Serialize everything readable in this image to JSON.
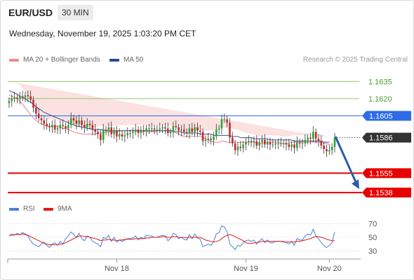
{
  "header": {
    "symbol": "EUR/USD",
    "timeframe": "30 MIN",
    "datetime": "Wednesday, November 19, 2025 1:03:20 PM CET"
  },
  "legend": {
    "main": [
      {
        "label": "MA 20 + Bollinger Bands",
        "color": "#f08c8c"
      },
      {
        "label": "MA 50",
        "color": "#2a4a8a"
      }
    ],
    "rsi": [
      {
        "label": "RSI",
        "color": "#4f7fd6"
      },
      {
        "label": "9MA",
        "color": "#e11a1a"
      }
    ]
  },
  "credit": "Research © 2025 Trading Central",
  "chart_data": {
    "type": "candlestick",
    "price_range": [
      1.1532,
      1.1645
    ],
    "x_ticks": [
      {
        "label": "Nov 18",
        "index": 40
      },
      {
        "label": "Nov 19",
        "index": 88
      },
      {
        "label": "Nov 20",
        "index": 119
      }
    ],
    "levels": [
      {
        "value": 1.1635,
        "label": "1.1635",
        "kind": "target",
        "color": "#8dc96a"
      },
      {
        "value": 1.162,
        "label": "1.1620",
        "kind": "target",
        "color": "#8dc96a"
      },
      {
        "value": 1.1605,
        "label": "1.1605",
        "kind": "pivot",
        "color": "#2e6be6"
      },
      {
        "value": 1.1586,
        "label": "1.1586",
        "kind": "last",
        "color": "#333333"
      },
      {
        "value": 1.1555,
        "label": "1.1555",
        "kind": "support",
        "color": "#e60000"
      },
      {
        "value": 1.1538,
        "label": "1.1538",
        "kind": "support",
        "color": "#e60000"
      }
    ],
    "projection": {
      "from_price": 1.1587,
      "to_price": 1.1541
    },
    "closes": [
      1.1618,
      1.162,
      1.1621,
      1.162,
      1.1622,
      1.1621,
      1.1623,
      1.1622,
      1.1619,
      1.1612,
      1.1607,
      1.1603,
      1.1601,
      1.1598,
      1.1596,
      1.1595,
      1.1597,
      1.1593,
      1.1594,
      1.1597,
      1.1596,
      1.1594,
      1.1597,
      1.1603,
      1.1601,
      1.1598,
      1.1601,
      1.1597,
      1.1595,
      1.1598,
      1.1597,
      1.1593,
      1.1591,
      1.1589,
      1.1584,
      1.1593,
      1.1592,
      1.1595,
      1.1589,
      1.1592,
      1.1587,
      1.1589,
      1.1587,
      1.1588,
      1.159,
      1.159,
      1.1591,
      1.1593,
      1.159,
      1.1592,
      1.1591,
      1.1594,
      1.1594,
      1.1594,
      1.1593,
      1.1593,
      1.1594,
      1.1595,
      1.1594,
      1.159,
      1.1591,
      1.1596,
      1.1595,
      1.1592,
      1.1593,
      1.1591,
      1.159,
      1.1594,
      1.1591,
      1.1595,
      1.1592,
      1.1591,
      1.1583,
      1.1584,
      1.1585,
      1.1584,
      1.1587,
      1.1593,
      1.1594,
      1.1602,
      1.1602,
      1.1599,
      1.1586,
      1.1581,
      1.1575,
      1.1578,
      1.1577,
      1.158,
      1.1582,
      1.1583,
      1.1582,
      1.1583,
      1.1579,
      1.1582,
      1.1584,
      1.158,
      1.1582,
      1.158,
      1.158,
      1.1581,
      1.1581,
      1.1581,
      1.1581,
      1.158,
      1.1578,
      1.158,
      1.1577,
      1.1582,
      1.1581,
      1.1581,
      1.1584,
      1.1586,
      1.1585,
      1.1591,
      1.1585,
      1.1583,
      1.1579,
      1.1576,
      1.1574,
      1.1575,
      1.1578,
      1.1586
    ],
    "ma20": [
      1.1623,
      1.1622,
      1.1621,
      1.162,
      1.1618,
      1.1615,
      1.1612,
      1.1609,
      1.1606,
      1.1603,
      1.1601,
      1.1599,
      1.1598,
      1.1597,
      1.1596,
      1.1596,
      1.1596,
      1.1596,
      1.1596,
      1.1595,
      1.1594,
      1.1594,
      1.1593,
      1.1592,
      1.1591,
      1.159,
      1.159,
      1.1589,
      1.1589,
      1.1589,
      1.1589,
      1.1589,
      1.1589,
      1.159,
      1.159,
      1.159,
      1.1591,
      1.1591,
      1.1591,
      1.1591,
      1.1591,
      1.1592,
      1.1592,
      1.1592,
      1.1592,
      1.1592,
      1.1592,
      1.1592,
      1.1592,
      1.1592,
      1.1592,
      1.1592,
      1.1591,
      1.1591,
      1.1591,
      1.1592,
      1.1592,
      1.1592,
      1.1592,
      1.1592,
      1.1591,
      1.1591,
      1.159,
      1.1589,
      1.1588,
      1.1587,
      1.1587,
      1.1587,
      1.1587,
      1.1587,
      1.1587,
      1.1587,
      1.1586,
      1.1585,
      1.1584,
      1.1583,
      1.1582,
      1.1582,
      1.1582,
      1.1583,
      1.1583,
      1.1582,
      1.1582,
      1.1582,
      1.1582,
      1.1582,
      1.1582,
      1.1582,
      1.1582,
      1.1582,
      1.1582,
      1.1582,
      1.1581,
      1.1581,
      1.1581,
      1.1582,
      1.1582,
      1.1582,
      1.1582,
      1.1582,
      1.1582,
      1.1581,
      1.1581,
      1.1581,
      1.1581,
      1.1582,
      1.1582,
      1.1582,
      1.1582,
      1.1582,
      1.1582,
      1.1582,
      1.1582,
      1.1582,
      1.1582,
      1.1582,
      1.1582,
      1.1581,
      1.1581,
      1.158
    ],
    "bb_width": [
      0.0012,
      0.0012,
      0.0013,
      0.0013,
      0.0014,
      0.0014,
      0.0014,
      0.0013,
      0.0012,
      0.0011,
      0.001,
      0.0009,
      0.0008,
      0.0007,
      0.0006,
      0.0006,
      0.0006,
      0.0006,
      0.0006,
      0.0006,
      0.0006,
      0.0006,
      0.0006,
      0.0006,
      0.0006,
      0.0006,
      0.0006,
      0.0006,
      0.0006,
      0.0006,
      0.0006,
      0.0006,
      0.0006,
      0.0006,
      0.0006,
      0.0006,
      0.0005,
      0.0005,
      0.0005,
      0.0005,
      0.0005,
      0.0005,
      0.0005,
      0.0005,
      0.0005,
      0.0005,
      0.0005,
      0.0005,
      0.0005,
      0.0005,
      0.0005,
      0.0005,
      0.0005,
      0.0005,
      0.0005,
      0.0005,
      0.0005,
      0.0005,
      0.0005,
      0.0005,
      0.0005,
      0.0005,
      0.0005,
      0.0005,
      0.0005,
      0.0005,
      0.0005,
      0.0005,
      0.0005,
      0.0005,
      0.0005,
      0.0006,
      0.0006,
      0.0007,
      0.0008,
      0.0009,
      0.001,
      0.0011,
      0.0012,
      0.0012,
      0.0012,
      0.0012,
      0.0012,
      0.0012,
      0.0011,
      0.0011,
      0.001,
      0.0009,
      0.0008,
      0.0008,
      0.0007,
      0.0007,
      0.0006,
      0.0006,
      0.0006,
      0.0006,
      0.0006,
      0.0006,
      0.0006,
      0.0006,
      0.0006,
      0.0006,
      0.0006,
      0.0006,
      0.0006,
      0.0006,
      0.0006,
      0.0006,
      0.0006,
      0.0006,
      0.0006,
      0.0006,
      0.0007,
      0.0007,
      0.0007,
      0.0007,
      0.0007,
      0.0007,
      0.0006,
      0.0006
    ],
    "ma50": [
      1.1627,
      1.1626,
      1.1625,
      1.1624,
      1.1622,
      1.1621,
      1.162,
      1.1618,
      1.1617,
      1.1615,
      1.1613,
      1.1611,
      1.161,
      1.1608,
      1.1607,
      1.1606,
      1.1605,
      1.1604,
      1.1603,
      1.1602,
      1.1601,
      1.16,
      1.1599,
      1.1598,
      1.1597,
      1.1596,
      1.1596,
      1.1595,
      1.1595,
      1.1594,
      1.1594,
      1.1593,
      1.1593,
      1.1593,
      1.1593,
      1.1593,
      1.1592,
      1.1592,
      1.1592,
      1.1592,
      1.1592,
      1.1592,
      1.1592,
      1.1592,
      1.1592,
      1.1592,
      1.1592,
      1.1592,
      1.1592,
      1.1592,
      1.1592,
      1.1592,
      1.1592,
      1.1592,
      1.1592,
      1.1592,
      1.1592,
      1.1592,
      1.1592,
      1.1592,
      1.1592,
      1.1592,
      1.1591,
      1.1591,
      1.1591,
      1.159,
      1.159,
      1.159,
      1.159,
      1.159,
      1.159,
      1.1589,
      1.1589,
      1.1589,
      1.1589,
      1.1589,
      1.1588,
      1.1588,
      1.1588,
      1.1588,
      1.1588,
      1.1588,
      1.1588,
      1.1587,
      1.1587,
      1.1587,
      1.1586,
      1.1586,
      1.1586,
      1.1586,
      1.1586,
      1.1585,
      1.1585,
      1.1585,
      1.1585,
      1.1585,
      1.1585,
      1.1584,
      1.1584,
      1.1584,
      1.1584,
      1.1584,
      1.1584,
      1.1584,
      1.1584,
      1.1584,
      1.1583,
      1.1583,
      1.1583,
      1.1583,
      1.1583,
      1.1583,
      1.1583,
      1.1583,
      1.1583,
      1.1583,
      1.1583,
      1.1582,
      1.1582,
      1.1582
    ],
    "rsi": {
      "ticks": [
        70,
        50,
        30
      ],
      "range": [
        20,
        80
      ],
      "values": [
        52,
        55,
        53,
        56,
        54,
        57,
        55,
        52,
        45,
        40,
        38,
        36,
        40,
        43,
        38,
        35,
        40,
        42,
        38,
        44,
        40,
        48,
        52,
        58,
        54,
        50,
        56,
        48,
        45,
        52,
        50,
        44,
        42,
        40,
        36,
        50,
        48,
        53,
        44,
        50,
        43,
        46,
        44,
        46,
        48,
        48,
        49,
        52,
        46,
        50,
        48,
        53,
        52,
        52,
        50,
        50,
        52,
        53,
        52,
        45,
        48,
        56,
        54,
        48,
        50,
        47,
        46,
        54,
        48,
        55,
        49,
        47,
        36,
        38,
        40,
        38,
        44,
        55,
        57,
        67,
        65,
        58,
        40,
        36,
        32,
        38,
        37,
        42,
        45,
        46,
        44,
        46,
        40,
        45,
        48,
        42,
        46,
        42,
        42,
        44,
        44,
        44,
        44,
        42,
        40,
        44,
        38,
        48,
        46,
        46,
        52,
        55,
        53,
        62,
        52,
        48,
        42,
        38,
        35,
        38,
        42,
        58
      ],
      "ma9": [
        53,
        53,
        54,
        54,
        54,
        55,
        54,
        53,
        51,
        49,
        47,
        45,
        43,
        41,
        40,
        39,
        39,
        39,
        39,
        40,
        40,
        42,
        44,
        46,
        48,
        50,
        52,
        52,
        51,
        51,
        50,
        49,
        48,
        47,
        45,
        46,
        46,
        47,
        46,
        46,
        45,
        46,
        46,
        47,
        47,
        47,
        47,
        48,
        48,
        48,
        48,
        49,
        49,
        50,
        50,
        50,
        50,
        51,
        51,
        50,
        50,
        51,
        51,
        50,
        50,
        50,
        49,
        50,
        50,
        50,
        50,
        50,
        48,
        46,
        45,
        44,
        43,
        44,
        45,
        48,
        51,
        53,
        54,
        53,
        51,
        49,
        47,
        45,
        42,
        41,
        41,
        42,
        42,
        43,
        44,
        44,
        44,
        44,
        44,
        44,
        44,
        44,
        43,
        43,
        43,
        43,
        43,
        44,
        44,
        45,
        46,
        47,
        48,
        50,
        51,
        51,
        50,
        49,
        47,
        46,
        45,
        45
      ]
    }
  }
}
